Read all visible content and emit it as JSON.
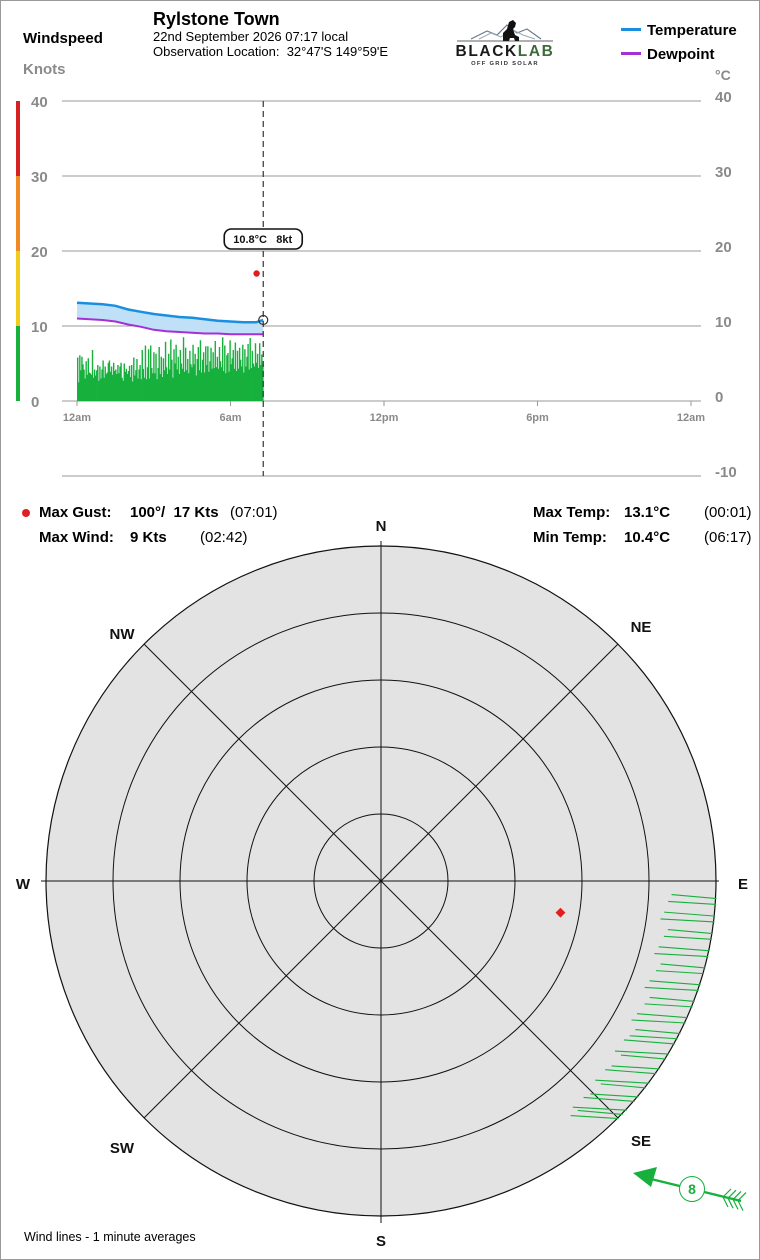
{
  "header": {
    "station_name": "Rylstone Town",
    "date_time": "22nd September 2026  07:17 local",
    "location_label": "Observation Location:",
    "location_value": "32°47'S 149°59'E",
    "left_axis_title": "Windspeed",
    "left_axis_unit": "Knots",
    "right_axis_unit": "°C"
  },
  "logo": {
    "name_dark": "BLACK",
    "name_light": "LAB",
    "tagline": "OFF GRID SOLAR"
  },
  "legend": {
    "items": [
      {
        "label": "Temperature",
        "color": "#1a8fe0"
      },
      {
        "label": "Dewpoint",
        "color": "#a62fd6"
      }
    ]
  },
  "chart_data": [
    {
      "type": "line",
      "x_ticks": [
        "12am",
        "6am",
        "12pm",
        "6pm",
        "12am"
      ],
      "x_range_hours": [
        0,
        24
      ],
      "current_time_hours": 7.28,
      "y_left": {
        "label": "Windspeed",
        "unit": "Knots",
        "ticks": [
          0,
          10,
          20,
          30,
          40
        ],
        "range": [
          0,
          40
        ]
      },
      "y_right": {
        "unit": "°C",
        "ticks": [
          -10,
          0,
          10,
          20,
          30,
          40
        ],
        "range": [
          -10,
          40
        ]
      },
      "speed_bands": [
        {
          "from": 0,
          "to": 10,
          "color": "#17b03c"
        },
        {
          "from": 10,
          "to": 20,
          "color": "#f2cc1c"
        },
        {
          "from": 20,
          "to": 30,
          "color": "#f08a24"
        },
        {
          "from": 30,
          "to": 40,
          "color": "#d42222"
        }
      ],
      "series": [
        {
          "name": "Temperature",
          "color": "#1a8fe0",
          "x": [
            0,
            0.5,
            1.0,
            1.5,
            2.0,
            2.5,
            3.0,
            3.5,
            4.0,
            4.5,
            5.0,
            5.5,
            6.0,
            6.5,
            7.0,
            7.28
          ],
          "y": [
            13.1,
            13.0,
            12.9,
            12.7,
            12.2,
            11.9,
            11.6,
            11.4,
            11.2,
            11.1,
            10.9,
            10.7,
            10.6,
            10.5,
            10.5,
            10.8
          ]
        },
        {
          "name": "Dewpoint",
          "color": "#a62fd6",
          "x": [
            0,
            0.5,
            1.0,
            1.5,
            2.0,
            2.5,
            3.0,
            3.5,
            4.0,
            4.5,
            5.0,
            5.5,
            6.0,
            6.5,
            7.0,
            7.28
          ],
          "y": [
            11.0,
            10.9,
            10.8,
            10.6,
            10.2,
            9.9,
            9.5,
            9.3,
            9.2,
            9.1,
            9.0,
            9.0,
            8.9,
            8.9,
            8.9,
            8.9
          ]
        },
        {
          "name": "Windspeed",
          "color": "#17b03c",
          "x_start": 0,
          "x_end": 7.28,
          "values": [
            5.8,
            2.5,
            6.1,
            4.1,
            5.9,
            4.9,
            4.2,
            3.0,
            5.3,
            3.5,
            5.7,
            3.8,
            3.7,
            3.5,
            6.8,
            3.1,
            4.2,
            3.4,
            4.1,
            4.8,
            2.7,
            4.6,
            3.0,
            4.2,
            5.4,
            3.1,
            4.6,
            3.6,
            3.8,
            5.1,
            5.4,
            3.9,
            4.6,
            3.5,
            5.1,
            4.0,
            4.2,
            3.6,
            4.8,
            3.7,
            4.6,
            5.1,
            3.1,
            2.7,
            5.0,
            3.9,
            4.3,
            3.6,
            4.0,
            4.7,
            3.2,
            4.8,
            2.6,
            5.8,
            3.4,
            4.1,
            5.6,
            3.0,
            4.2,
            4.8,
            2.9,
            6.8,
            4.3,
            3.1,
            7.4,
            2.9,
            4.5,
            6.9,
            3.0,
            7.4,
            4.4,
            3.7,
            6.5,
            3.7,
            6.3,
            2.9,
            4.4,
            7.2,
            3.6,
            5.9,
            3.2,
            5.7,
            4.1,
            7.9,
            4.5,
            3.6,
            6.3,
            4.2,
            8.2,
            5.5,
            3.1,
            6.9,
            5.0,
            7.5,
            4.2,
            5.9,
            3.6,
            6.8,
            5.0,
            4.3,
            8.5,
            3.9,
            7.1,
            4.1,
            5.6,
            3.7,
            6.7,
            4.9,
            4.5,
            7.5,
            4.9,
            6.3,
            3.4,
            5.6,
            7.2,
            4.1,
            8.1,
            3.8,
            5.5,
            6.5,
            3.8,
            7.3,
            4.8,
            7.3,
            3.9,
            5.3,
            7.1,
            4.3,
            6.5,
            4.4,
            8.0,
            4.5,
            5.9,
            4.3,
            7.2,
            5.3,
            4.5,
            8.5,
            4.0,
            7.4,
            3.7,
            6.1,
            6.4,
            3.9,
            8.1,
            4.9,
            5.7,
            6.8,
            4.3,
            7.8,
            4.0,
            6.7,
            4.3,
            7.1,
            5.5,
            4.6,
            7.5,
            3.8,
            6.9,
            4.6,
            5.9,
            7.6,
            4.2,
            8.4,
            4.4,
            6.7,
            5.0,
            4.6,
            7.7,
            5.1,
            6.3,
            4.4,
            7.7,
            4.8,
            6.2,
            5.0
          ]
        },
        {
          "name": "Max Gust",
          "type": "scatter",
          "color": "#e02020",
          "x": [
            7.02
          ],
          "y": [
            17
          ]
        }
      ],
      "current_marker": {
        "temp": "10.8°C",
        "wind": "8kt"
      }
    },
    {
      "type": "polar",
      "directions": [
        "N",
        "NE",
        "E",
        "SE",
        "S",
        "SW",
        "W",
        "NW"
      ],
      "max_radius_knots": 40,
      "ring_step_knots": 8,
      "wind_lines": {
        "color": "#17b03c",
        "directions_deg": [
          93,
          94,
          96,
          97,
          99,
          100,
          102,
          103,
          105,
          106,
          108,
          109,
          111,
          112,
          114,
          115,
          117,
          118,
          119,
          121,
          122,
          124,
          125,
          127,
          128,
          130,
          131,
          133,
          134,
          135
        ],
        "note": "Wind lines - 1 minute averages"
      },
      "gust": {
        "direction_deg": 100,
        "speed_knots": 17,
        "color": "#e02020"
      },
      "current": {
        "direction_deg": 110,
        "speed_knots": 8
      }
    }
  ],
  "stats": {
    "max_gust_label": "Max Gust:",
    "max_gust_value": "100°/  17 Kts",
    "max_gust_time": "(07:01)",
    "max_wind_label": "Max Wind:",
    "max_wind_value": "9 Kts",
    "max_wind_time": "(02:42)",
    "max_temp_label": "Max Temp:",
    "max_temp_value": "13.1°C",
    "max_temp_time": "(00:01)",
    "min_temp_label": "Min Temp:",
    "min_temp_value": "10.4°C",
    "min_temp_time": "(06:17)"
  },
  "footer": {
    "note": "Wind lines - 1 minute averages"
  },
  "current_badge": {
    "speed": "8"
  }
}
